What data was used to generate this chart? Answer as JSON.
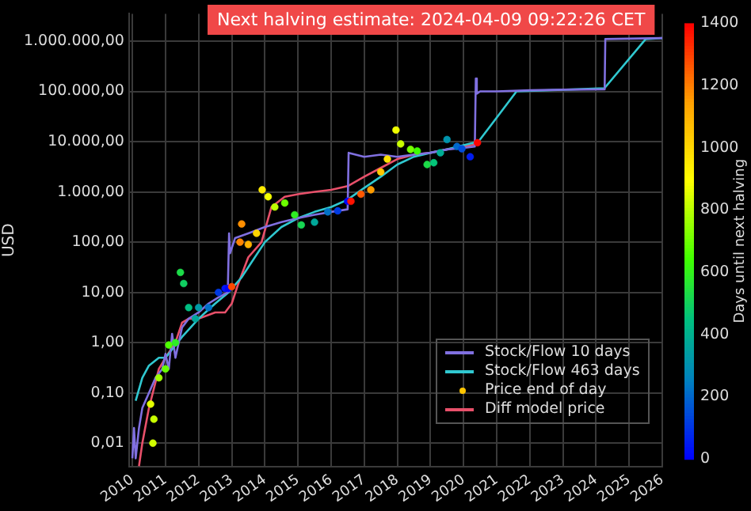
{
  "chart_data": {
    "type": "line",
    "ylabel": "USD",
    "clabel": "Days until next halving",
    "annotations": [
      "Next halving estimate: 2024-04-09 09:22:26 CET"
    ],
    "log": "y",
    "grid": true,
    "legend": "bottom right",
    "xlim": [
      2009.9,
      2026
    ],
    "xticks": [
      2010,
      2011,
      2012,
      2013,
      2014,
      2015,
      2016,
      2017,
      2018,
      2019,
      2020,
      2021,
      2022,
      2023,
      2024,
      2025,
      2026
    ],
    "ylim": [
      0.0034,
      3500000
    ],
    "yticks": [
      {
        "value": 0.01,
        "label": "0,01"
      },
      {
        "value": 0.1,
        "label": "0,10"
      },
      {
        "value": 1,
        "label": "1,00"
      },
      {
        "value": 10,
        "label": "10,00"
      },
      {
        "value": 100,
        "label": "100,00"
      },
      {
        "value": 1000,
        "label": "1.000,00"
      },
      {
        "value": 10000,
        "label": "10.000,00"
      },
      {
        "value": 100000,
        "label": "100.000,00"
      },
      {
        "value": 1000000,
        "label": "1.000.000,00"
      }
    ],
    "clim": [
      0,
      1400
    ],
    "cticks": [
      0,
      200,
      400,
      600,
      800,
      1000,
      1200,
      1400
    ],
    "series": [
      {
        "name": "Stock/Flow 10 days",
        "type": "line",
        "color": "#8070e0",
        "x": [
          2010.0,
          2010.05,
          2010.1,
          2010.2,
          2010.3,
          2010.5,
          2010.7,
          2010.9,
          2011.0,
          2011.1,
          2011.2,
          2011.3,
          2011.5,
          2011.7,
          2012.0,
          2012.3,
          2012.6,
          2012.88,
          2012.92,
          2012.95,
          2013.1,
          2013.5,
          2014.0,
          2014.5,
          2015.0,
          2015.5,
          2016.0,
          2016.5,
          2016.53,
          2017.0,
          2017.5,
          2018.0,
          2018.5,
          2019.0,
          2019.5,
          2020.0,
          2020.34,
          2020.37,
          2020.4,
          2020.5,
          2021.0,
          2022.0,
          2023.0,
          2024.26,
          2024.28,
          2026.0
        ],
        "values": [
          0.005,
          0.02,
          0.005,
          0.02,
          0.05,
          0.1,
          0.2,
          0.3,
          0.6,
          0.3,
          1.5,
          0.5,
          2,
          3,
          4,
          6,
          8,
          10,
          150,
          60,
          120,
          150,
          200,
          250,
          300,
          350,
          400,
          450,
          6000,
          5000,
          5500,
          5000,
          5500,
          6000,
          7000,
          7500,
          8000,
          180000,
          90000,
          100000,
          100000,
          105000,
          108000,
          110000,
          1100000,
          1150000
        ]
      },
      {
        "name": "Stock/Flow 463 days",
        "type": "line",
        "color": "#30c8d0",
        "x": [
          2010.1,
          2010.3,
          2010.5,
          2010.8,
          2011.0,
          2011.5,
          2012.0,
          2012.5,
          2012.9,
          2013.3,
          2014.0,
          2014.5,
          2015.0,
          2015.5,
          2016.0,
          2016.5,
          2017.0,
          2017.5,
          2018.0,
          2018.5,
          2019.0,
          2019.5,
          2020.0,
          2020.45,
          2021.0,
          2021.6,
          2024.25,
          2025.5,
          2026.0
        ],
        "values": [
          0.07,
          0.2,
          0.35,
          0.5,
          0.5,
          1.3,
          3,
          6,
          10,
          20,
          100,
          200,
          300,
          400,
          500,
          700,
          1200,
          2000,
          3500,
          5000,
          6000,
          7000,
          8500,
          10000,
          30000,
          100000,
          115000,
          1100000,
          1150000
        ]
      },
      {
        "name": "Price end of day",
        "type": "scatter",
        "x": [
          2010.55,
          2010.62,
          2010.65,
          2010.8,
          2011.0,
          2011.1,
          2011.3,
          2011.45,
          2011.55,
          2011.7,
          2011.9,
          2012.0,
          2012.3,
          2012.6,
          2012.8,
          2012.9,
          2013.0,
          2013.25,
          2013.3,
          2013.5,
          2013.75,
          2013.92,
          2014.1,
          2014.3,
          2014.6,
          2014.9,
          2015.1,
          2015.5,
          2015.9,
          2016.2,
          2016.5,
          2016.6,
          2016.9,
          2017.2,
          2017.5,
          2017.7,
          2017.96,
          2018.1,
          2018.4,
          2018.6,
          2018.9,
          2019.1,
          2019.3,
          2019.5,
          2019.8,
          2019.95,
          2020.2,
          2020.42
        ],
        "values": [
          0.06,
          0.01,
          0.03,
          0.2,
          0.3,
          0.9,
          1,
          25,
          15,
          5,
          3,
          5,
          5,
          10,
          12,
          12,
          13,
          100,
          230,
          90,
          150,
          1100,
          800,
          500,
          600,
          350,
          220,
          250,
          400,
          420,
          650,
          650,
          900,
          1100,
          2500,
          4500,
          17000,
          9000,
          7000,
          6500,
          3500,
          3800,
          6000,
          11000,
          8000,
          7200,
          5000,
          9500
        ],
        "colors": [
          "#e4ff00",
          "#d1ff00",
          "#c9ff00",
          "#a0ff00",
          "#68ff00",
          "#4dff00",
          "#2eed25",
          "#1cdb48",
          "#10cf61",
          "#00be82",
          "#00a69a",
          "#009aa6",
          "#0071c7",
          "#0039e2",
          "#0014f5",
          "#0002fe",
          "#ff4900",
          "#ff8400",
          "#ff8f00",
          "#ffb100",
          "#ffd400",
          "#ffeb00",
          "#f5ff00",
          "#beff00",
          "#6cff00",
          "#2fee23",
          "#17d652",
          "#00a799",
          "#0072c6",
          "#003be1",
          "#0004fd",
          "#ff1200",
          "#ff5700",
          "#ff9c00",
          "#ffc700",
          "#ffe300",
          "#f0ff00",
          "#c9ff00",
          "#76ff00",
          "#3ffe01",
          "#1cdb48",
          "#04c478",
          "#00ac94",
          "#0094ac",
          "#0068cc",
          "#004cd9",
          "#001df1",
          "#ff0600"
        ],
        "cvalues": [
          861,
          836,
          825,
          770,
          697,
          661,
          588,
          533,
          496,
          442,
          369,
          332,
          223,
          113,
          40,
          4,
          1285,
          1193,
          1175,
          1102,
          1011,
          949,
          883,
          810,
          701,
          591,
          518,
          372,
          226,
          117,
          7,
          1372,
          1263,
          1153,
          1044,
          971,
          876,
          825,
          715,
          642,
          533,
          460,
          387,
          314,
          204,
          150,
          58,
          1390
        ]
      },
      {
        "name": "Diff model price",
        "type": "line",
        "color": "#e8506a",
        "x": [
          2010.2,
          2010.3,
          2010.5,
          2010.8,
          2011.0,
          2011.3,
          2011.5,
          2011.7,
          2012.0,
          2012.5,
          2012.8,
          2013.0,
          2013.2,
          2013.5,
          2013.9,
          2014.2,
          2014.6,
          2015.0,
          2015.5,
          2016.0,
          2016.5,
          2017.0,
          2017.5,
          2018.0,
          2018.5,
          2019.0,
          2019.5,
          2020.0,
          2020.45
        ],
        "values": [
          0.0035,
          0.01,
          0.05,
          0.3,
          0.5,
          1,
          2.5,
          3,
          3,
          4,
          4,
          6,
          15,
          50,
          100,
          500,
          800,
          900,
          1000,
          1100,
          1300,
          2000,
          3000,
          4500,
          5500,
          6000,
          7000,
          8000,
          9000
        ]
      }
    ]
  }
}
